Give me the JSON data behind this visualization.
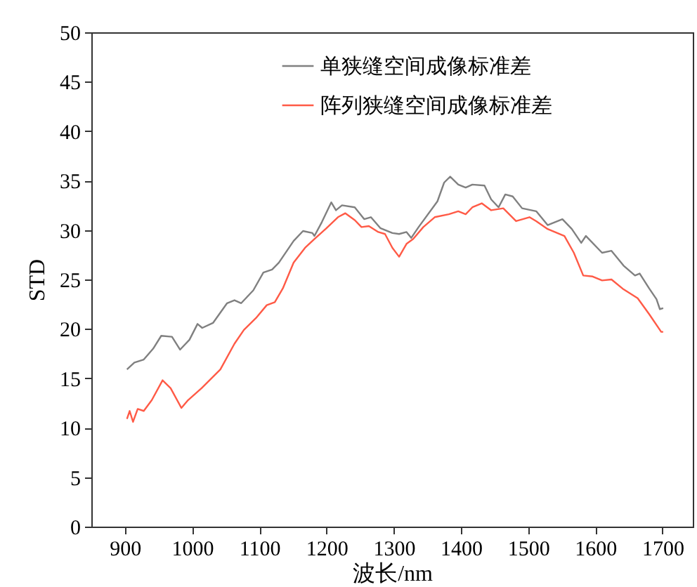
{
  "chart_data": {
    "type": "line",
    "xlabel": "波长/nm",
    "ylabel": "STD",
    "xlim": [
      850,
      1745
    ],
    "xticks": [
      900,
      1000,
      1100,
      1200,
      1300,
      1400,
      1500,
      1600,
      1700
    ],
    "ylim": [
      0,
      50
    ],
    "yticks": [
      0,
      5,
      10,
      15,
      20,
      25,
      30,
      35,
      40,
      45,
      50
    ],
    "grid": false,
    "legend": "top right",
    "line_style": "solid",
    "marker": "none",
    "series": [
      {
        "name": "单狭缝空间成像标准差",
        "color": "#808080",
        "x": [
          903,
          914,
          928,
          942,
          954,
          970,
          982,
          996,
          1008,
          1015,
          1031,
          1052,
          1063,
          1073,
          1091,
          1106,
          1119,
          1129,
          1151,
          1165,
          1179,
          1182,
          1193,
          1207,
          1214,
          1223,
          1242,
          1256,
          1266,
          1280,
          1298,
          1308,
          1319,
          1326,
          1337,
          1365,
          1375,
          1384,
          1396,
          1407,
          1417,
          1435,
          1445,
          1456,
          1466,
          1477,
          1491,
          1512,
          1529,
          1551,
          1565,
          1579,
          1586,
          1610,
          1624,
          1642,
          1659,
          1666,
          1680,
          1691,
          1696,
          1701
        ],
        "values": [
          15.9,
          16.6,
          16.9,
          18.0,
          19.3,
          19.2,
          17.9,
          18.9,
          20.5,
          20.1,
          20.6,
          22.6,
          22.9,
          22.6,
          23.9,
          25.7,
          26.0,
          26.7,
          28.9,
          29.9,
          29.7,
          29.4,
          30.8,
          32.8,
          32.0,
          32.5,
          32.3,
          31.1,
          31.3,
          30.2,
          29.7,
          29.6,
          29.8,
          29.2,
          30.3,
          32.9,
          34.8,
          35.4,
          34.6,
          34.3,
          34.6,
          34.5,
          33.1,
          32.3,
          33.6,
          33.4,
          32.2,
          31.9,
          30.5,
          31.1,
          30.1,
          28.7,
          29.4,
          27.7,
          27.9,
          26.4,
          25.4,
          25.6,
          24.1,
          23.0,
          22.0,
          22.1
        ]
      },
      {
        "name": "阵列狭缝空间成像标准差",
        "color": "#ff5a46",
        "x": [
          903,
          907,
          912,
          919,
          928,
          940,
          956,
          968,
          984,
          994,
          1014,
          1042,
          1063,
          1077,
          1095,
          1111,
          1123,
          1135,
          1151,
          1168,
          1182,
          1200,
          1217,
          1228,
          1242,
          1252,
          1263,
          1277,
          1287,
          1298,
          1308,
          1319,
          1329,
          1344,
          1361,
          1382,
          1396,
          1407,
          1417,
          1431,
          1445,
          1463,
          1482,
          1502,
          1512,
          1529,
          1554,
          1568,
          1582,
          1596,
          1610,
          1624,
          1642,
          1663,
          1680,
          1698,
          1701
        ],
        "values": [
          10.9,
          11.7,
          10.6,
          11.9,
          11.7,
          12.8,
          14.8,
          14.0,
          12.0,
          12.8,
          14.0,
          15.9,
          18.5,
          19.9,
          21.1,
          22.4,
          22.7,
          24.1,
          26.7,
          28.2,
          29.1,
          30.2,
          31.3,
          31.7,
          31.0,
          30.3,
          30.4,
          29.8,
          29.6,
          28.2,
          27.3,
          28.6,
          29.1,
          30.3,
          31.3,
          31.6,
          31.9,
          31.6,
          32.3,
          32.7,
          32.0,
          32.2,
          30.9,
          31.3,
          30.9,
          30.1,
          29.4,
          27.7,
          25.4,
          25.3,
          24.9,
          25.0,
          24.0,
          23.1,
          21.5,
          19.7,
          19.7
        ]
      }
    ]
  }
}
